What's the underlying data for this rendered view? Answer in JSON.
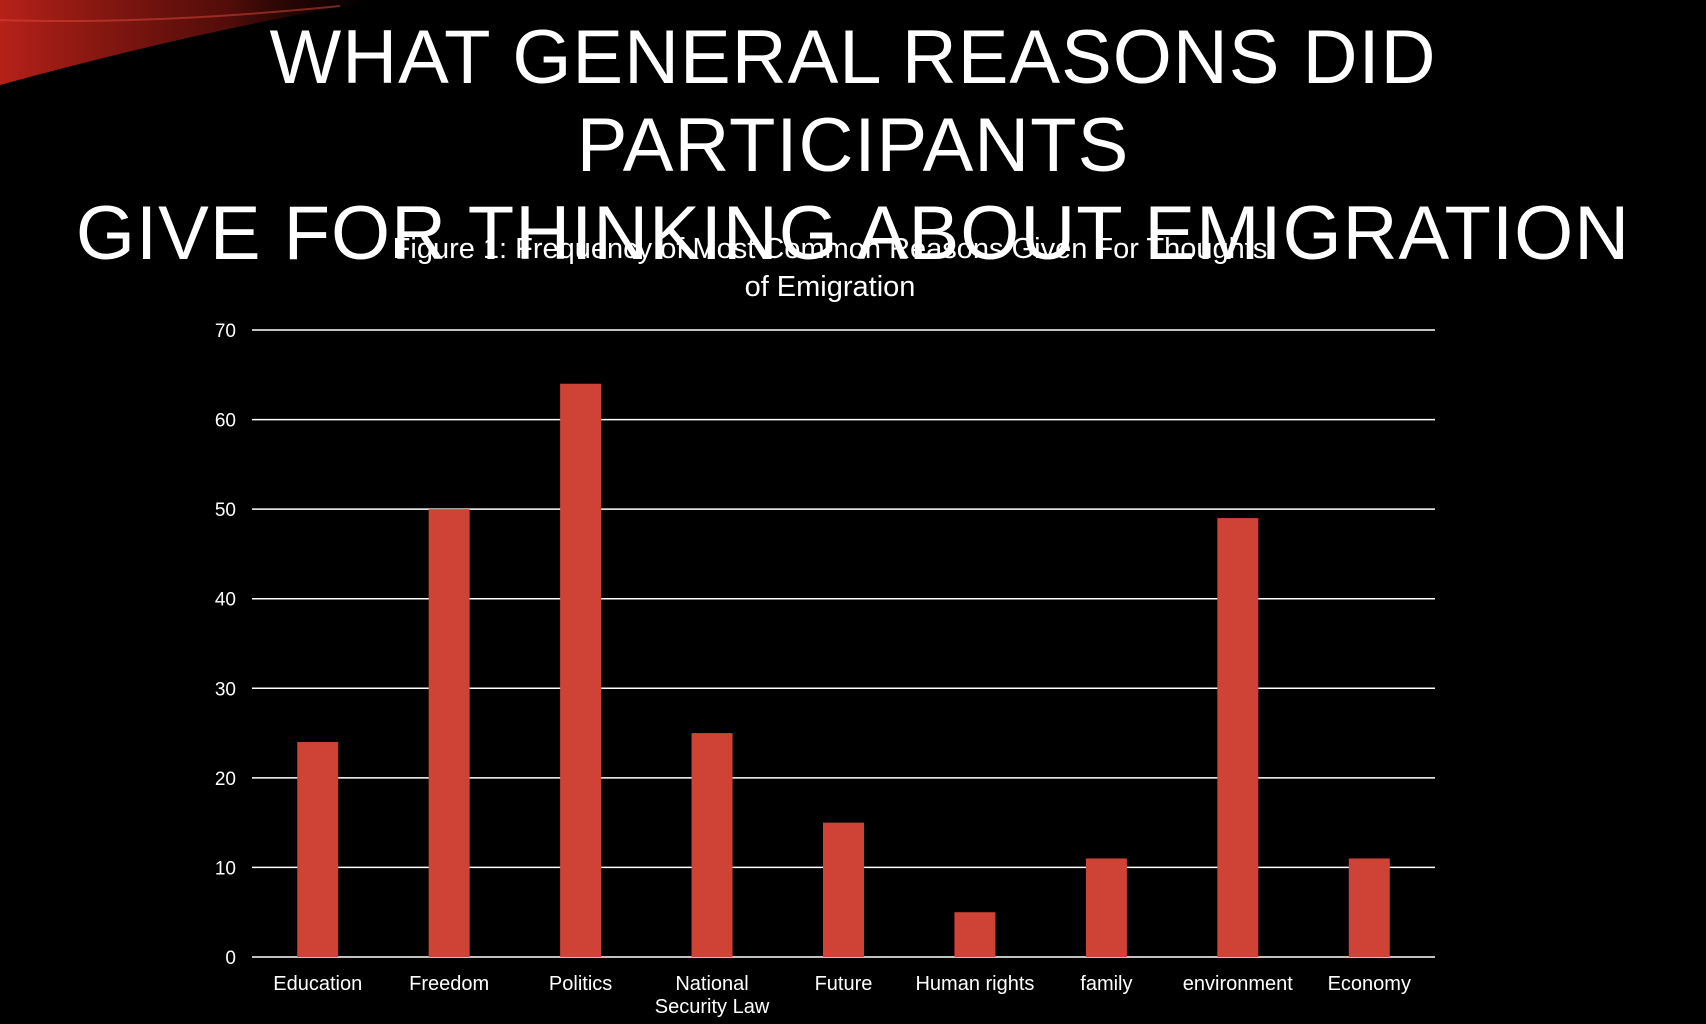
{
  "slide": {
    "title_line1": "WHAT GENERAL REASONS DID PARTICIPANTS",
    "title_line2": "GIVE FOR THINKING ABOUT EMIGRATION"
  },
  "colors": {
    "bar": "#cf4236",
    "background": "#000000",
    "text": "#ffffff",
    "grid": "#ffffff",
    "accent_swoosh": "#c0231a"
  },
  "chart_data": {
    "type": "bar",
    "title": "Figure 1: Frequency of Most Common Reasons Given For Thoughts of Emigration",
    "title_lines": [
      "Figure 1: Frequency of Most Common Reasons Given For Thoughts",
      "of Emigration"
    ],
    "categories": [
      "Education",
      "Freedom",
      "Politics",
      "National Security Law",
      "Future",
      "Human rights",
      "family",
      "environment",
      "Economy"
    ],
    "category_lines": [
      [
        "Education"
      ],
      [
        "Freedom"
      ],
      [
        "Politics"
      ],
      [
        "National",
        "Security Law"
      ],
      [
        "Future"
      ],
      [
        "Human rights"
      ],
      [
        "family"
      ],
      [
        "environment"
      ],
      [
        "Economy"
      ]
    ],
    "values": [
      24,
      50,
      64,
      25,
      15,
      5,
      11,
      49,
      11
    ],
    "ylim": [
      0,
      70
    ],
    "yticks": [
      0,
      10,
      20,
      30,
      40,
      50,
      60,
      70
    ],
    "grid": true,
    "legend": "none",
    "xlabel": "",
    "ylabel": ""
  }
}
